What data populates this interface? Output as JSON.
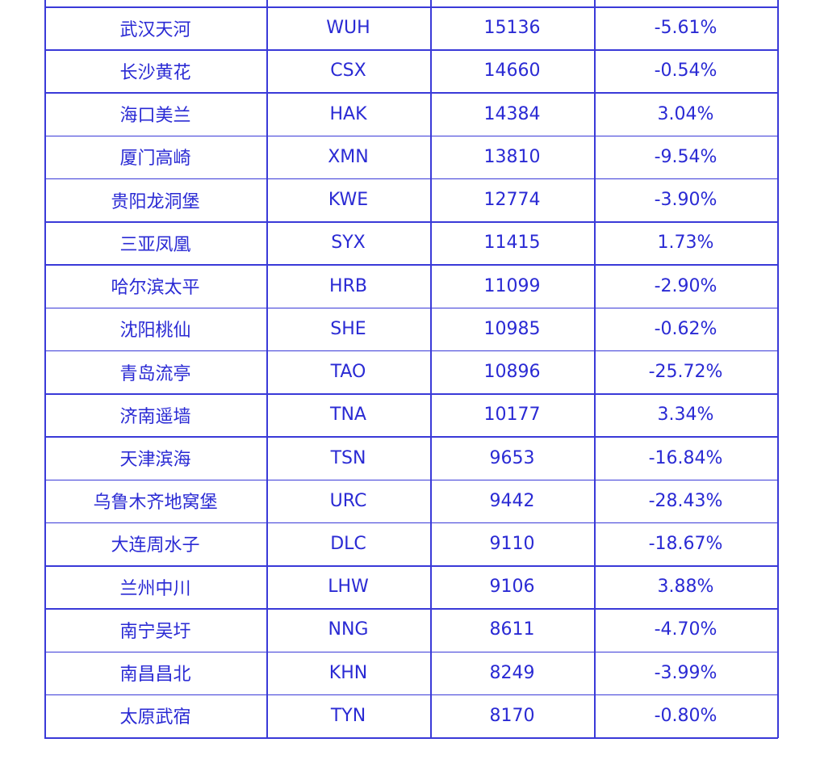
{
  "table": {
    "rows": [
      [
        "武汉天河",
        "WUH",
        "15136",
        "-5.61%"
      ],
      [
        "长沙黄花",
        "CSX",
        "14660",
        "-0.54%"
      ],
      [
        "海口美兰",
        "HAK",
        "14384",
        "3.04%"
      ],
      [
        "厦门高崎",
        "XMN",
        "13810",
        "-9.54%"
      ],
      [
        "贵阳龙洞堡",
        "KWE",
        "12774",
        "-3.90%"
      ],
      [
        "三亚凤凰",
        "SYX",
        "11415",
        "1.73%"
      ],
      [
        "哈尔滨太平",
        "HRB",
        "11099",
        "-2.90%"
      ],
      [
        "沈阳桃仙",
        "SHE",
        "10985",
        "-0.62%"
      ],
      [
        "青岛流亭",
        "TAO",
        "10896",
        "-25.72%"
      ],
      [
        "济南遥墙",
        "TNA",
        "10177",
        "3.34%"
      ],
      [
        "天津滨海",
        "TSN",
        "9653",
        "-16.84%"
      ],
      [
        "乌鲁木齐地窝堡",
        "URC",
        "9442",
        "-28.43%"
      ],
      [
        "大连周水子",
        "DLC",
        "9110",
        "-18.67%"
      ],
      [
        "兰州中川",
        "LHW",
        "9106",
        "3.88%"
      ],
      [
        "南宁吴圩",
        "NNG",
        "8611",
        "-4.70%"
      ],
      [
        "南昌昌北",
        "KHN",
        "8249",
        "-3.99%"
      ],
      [
        "太原武宿",
        "TYN",
        "8170",
        "-0.80%"
      ]
    ]
  }
}
